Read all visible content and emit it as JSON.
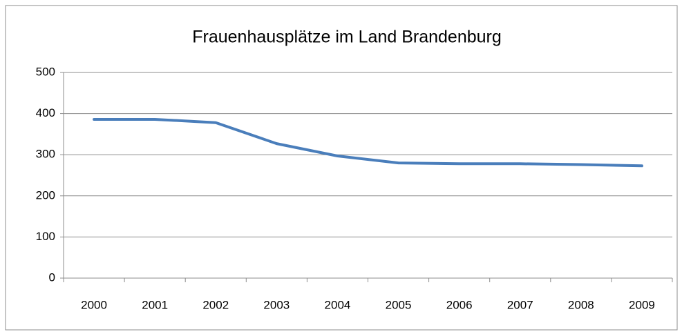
{
  "chart_data": {
    "type": "line",
    "title": "Frauenhausplätze im Land Brandenburg",
    "categories": [
      "2000",
      "2001",
      "2002",
      "2003",
      "2004",
      "2005",
      "2006",
      "2007",
      "2008",
      "2009"
    ],
    "values": [
      386,
      386,
      378,
      327,
      297,
      280,
      278,
      278,
      276,
      273
    ],
    "color": "#4a7ebb",
    "ylim": [
      0,
      500
    ],
    "yticks": [
      0,
      100,
      200,
      300,
      400,
      500
    ],
    "grid": true
  }
}
